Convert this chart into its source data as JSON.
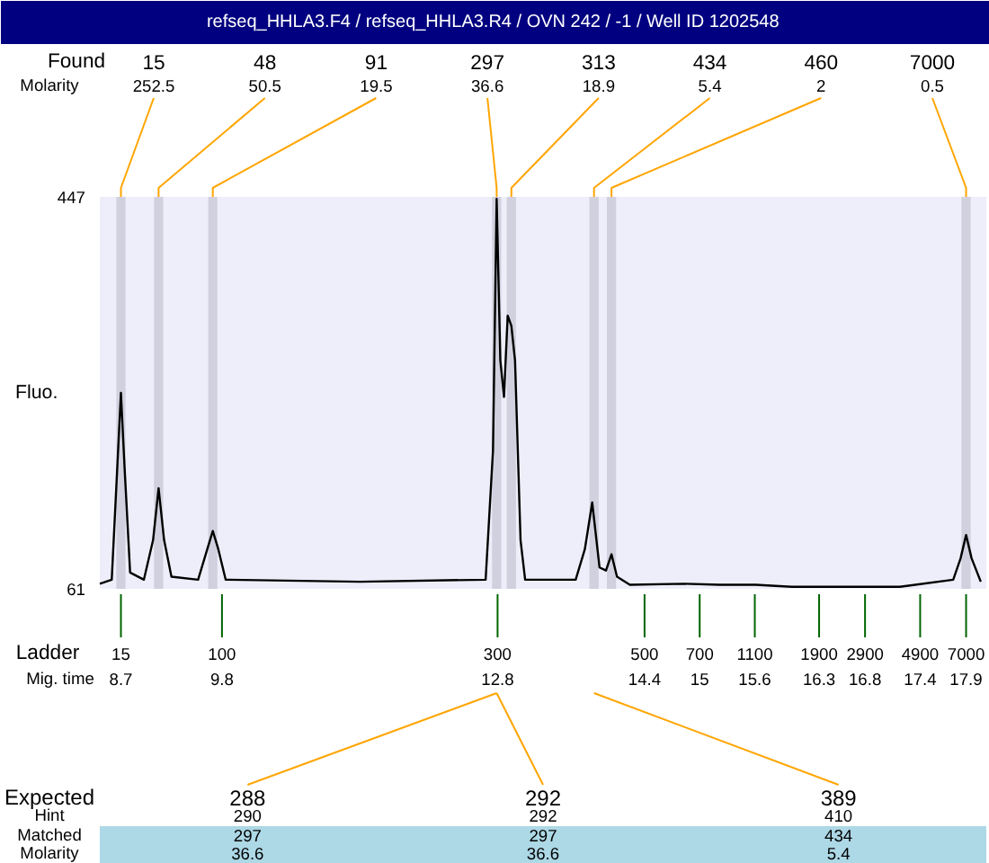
{
  "chart_data": {
    "type": "line",
    "title": "refseq_HHLA3.F4 / refseq_HHLA3.R4 / OVN 242 / -1  / Well ID 1202548",
    "ylabel": "Fluo.",
    "xlabel": "Mig. time",
    "x": [
      8.47,
      8.6,
      8.66,
      8.7,
      8.74,
      8.8,
      8.95,
      9.05,
      9.11,
      9.17,
      9.25,
      9.54,
      9.64,
      9.7,
      9.76,
      9.84,
      11.3,
      12.67,
      12.75,
      12.79,
      12.83,
      12.87,
      12.91,
      12.95,
      12.99,
      13.05,
      13.1,
      13.65,
      13.75,
      13.83,
      13.91,
      13.98,
      14.04,
      14.1,
      14.24,
      14.83,
      15.22,
      15.61,
      16.0,
      16.39,
      17.18,
      17.76,
      17.84,
      17.9,
      17.96,
      18.06
    ],
    "series": [
      {
        "color": "#000000",
        "values": [
          66,
          70,
          180,
          254,
          180,
          77,
          70,
          109,
          160,
          109,
          73,
          70,
          100,
          118,
          100,
          70,
          68,
          70,
          197,
          445,
          286,
          250,
          330,
          320,
          286,
          109,
          70,
          70,
          100,
          146,
          82,
          79,
          95,
          73,
          65,
          66,
          65,
          65,
          63,
          63,
          63,
          70,
          91,
          114,
          91,
          68
        ]
      }
    ],
    "xlim": [
      8.47,
      18.12
    ],
    "ylim": [
      61,
      447
    ],
    "yticks": [
      61,
      447
    ],
    "xticks": [
      8.7,
      9.8,
      12.8,
      14.4,
      15,
      15.6,
      16.3,
      16.8,
      17.4,
      17.9
    ],
    "bands": [
      {
        "axis": "x",
        "from": 8.65,
        "to": 8.75,
        "color": "#d0d0de"
      },
      {
        "axis": "x",
        "from": 9.06,
        "to": 9.16,
        "color": "#d0d0de"
      },
      {
        "axis": "x",
        "from": 9.65,
        "to": 9.75,
        "color": "#d0d0de"
      },
      {
        "axis": "x",
        "from": 12.74,
        "to": 12.84,
        "color": "#d0d0de"
      },
      {
        "axis": "x",
        "from": 12.9,
        "to": 13.0,
        "color": "#d0d0de"
      },
      {
        "axis": "x",
        "from": 13.8,
        "to": 13.9,
        "color": "#d0d0de"
      },
      {
        "axis": "x",
        "from": 13.99,
        "to": 14.09,
        "color": "#d0d0de"
      },
      {
        "axis": "x",
        "from": 17.85,
        "to": 17.95,
        "color": "#d0d0de"
      }
    ],
    "annotations": [
      "Found",
      "Molarity",
      "Ladder",
      "Expected",
      "Hint",
      "Matched",
      "Molarity",
      {
        "text": "15",
        "x": 8.7
      },
      {
        "text": "48",
        "x": 9.11
      },
      {
        "text": "91",
        "x": 9.7
      },
      {
        "text": "297",
        "x": 12.79
      },
      {
        "text": "313",
        "x": 12.95
      },
      {
        "text": "434",
        "x": 13.85
      },
      {
        "text": "460",
        "x": 14.04
      },
      {
        "text": "7000",
        "x": 17.9
      },
      "252.5",
      "50.5",
      "19.5",
      "36.6",
      "18.9",
      "5.4",
      "2",
      "0.5",
      "15",
      "100",
      "300",
      "500",
      "700",
      "1100",
      "1900",
      "2900",
      "4900",
      "7000",
      {
        "text": "288",
        "x": 12.79
      },
      {
        "text": "292",
        "x": 12.79
      },
      {
        "text": "389",
        "x": 13.85
      },
      "290",
      "297",
      "36.6",
      "292",
      "297",
      "36.6",
      "410",
      "434",
      "5.4"
    ]
  }
}
